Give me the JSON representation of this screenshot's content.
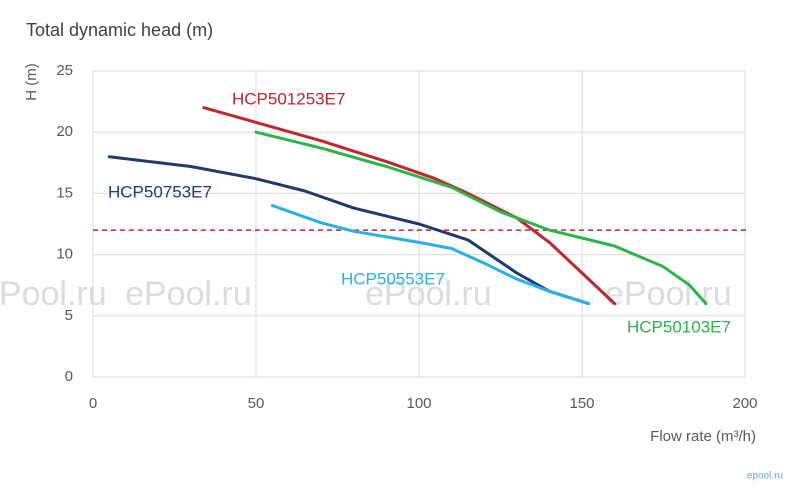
{
  "chart_data": {
    "type": "line",
    "title": "Total dynamic head (m)",
    "y_label": "H (m)",
    "x_label": "Flow rate (m³/h)",
    "xlim": [
      0,
      200
    ],
    "xticks": [
      0,
      50,
      100,
      150,
      200
    ],
    "ylim": [
      0,
      25
    ],
    "yticks": [
      0,
      5,
      10,
      15,
      20,
      25
    ],
    "grid": true,
    "reference_line": {
      "y": 12,
      "color": "#c0262d"
    },
    "watermark": "ePool.ru",
    "logo": "epool.ru",
    "series": [
      {
        "name": "HCP501253E7",
        "color": "#c0262d",
        "x": [
          34,
          50,
          70,
          90,
          105,
          115,
          130,
          140,
          150,
          160
        ],
        "values": [
          22,
          20.8,
          19.3,
          17.6,
          16.2,
          15,
          13,
          11,
          8.5,
          6
        ]
      },
      {
        "name": "HCP50103E7",
        "color": "#2db34a",
        "x": [
          50,
          70,
          90,
          110,
          125,
          140,
          160,
          175,
          183,
          188
        ],
        "values": [
          20,
          18.7,
          17.2,
          15.5,
          13.5,
          12,
          10.7,
          9,
          7.5,
          6
        ]
      },
      {
        "name": "HCP50753E7",
        "color": "#1f3a6e",
        "x": [
          5,
          30,
          50,
          65,
          80,
          100,
          115,
          130,
          140,
          152
        ],
        "values": [
          18,
          17.2,
          16.2,
          15.2,
          13.8,
          12.5,
          11.2,
          8.5,
          7,
          6
        ]
      },
      {
        "name": "HCP50553E7",
        "color": "#29b0e8",
        "x": [
          55,
          70,
          80,
          100,
          110,
          120,
          130,
          140,
          152
        ],
        "values": [
          14,
          12.6,
          11.9,
          11,
          10.5,
          9.3,
          8,
          7,
          6
        ]
      }
    ]
  }
}
